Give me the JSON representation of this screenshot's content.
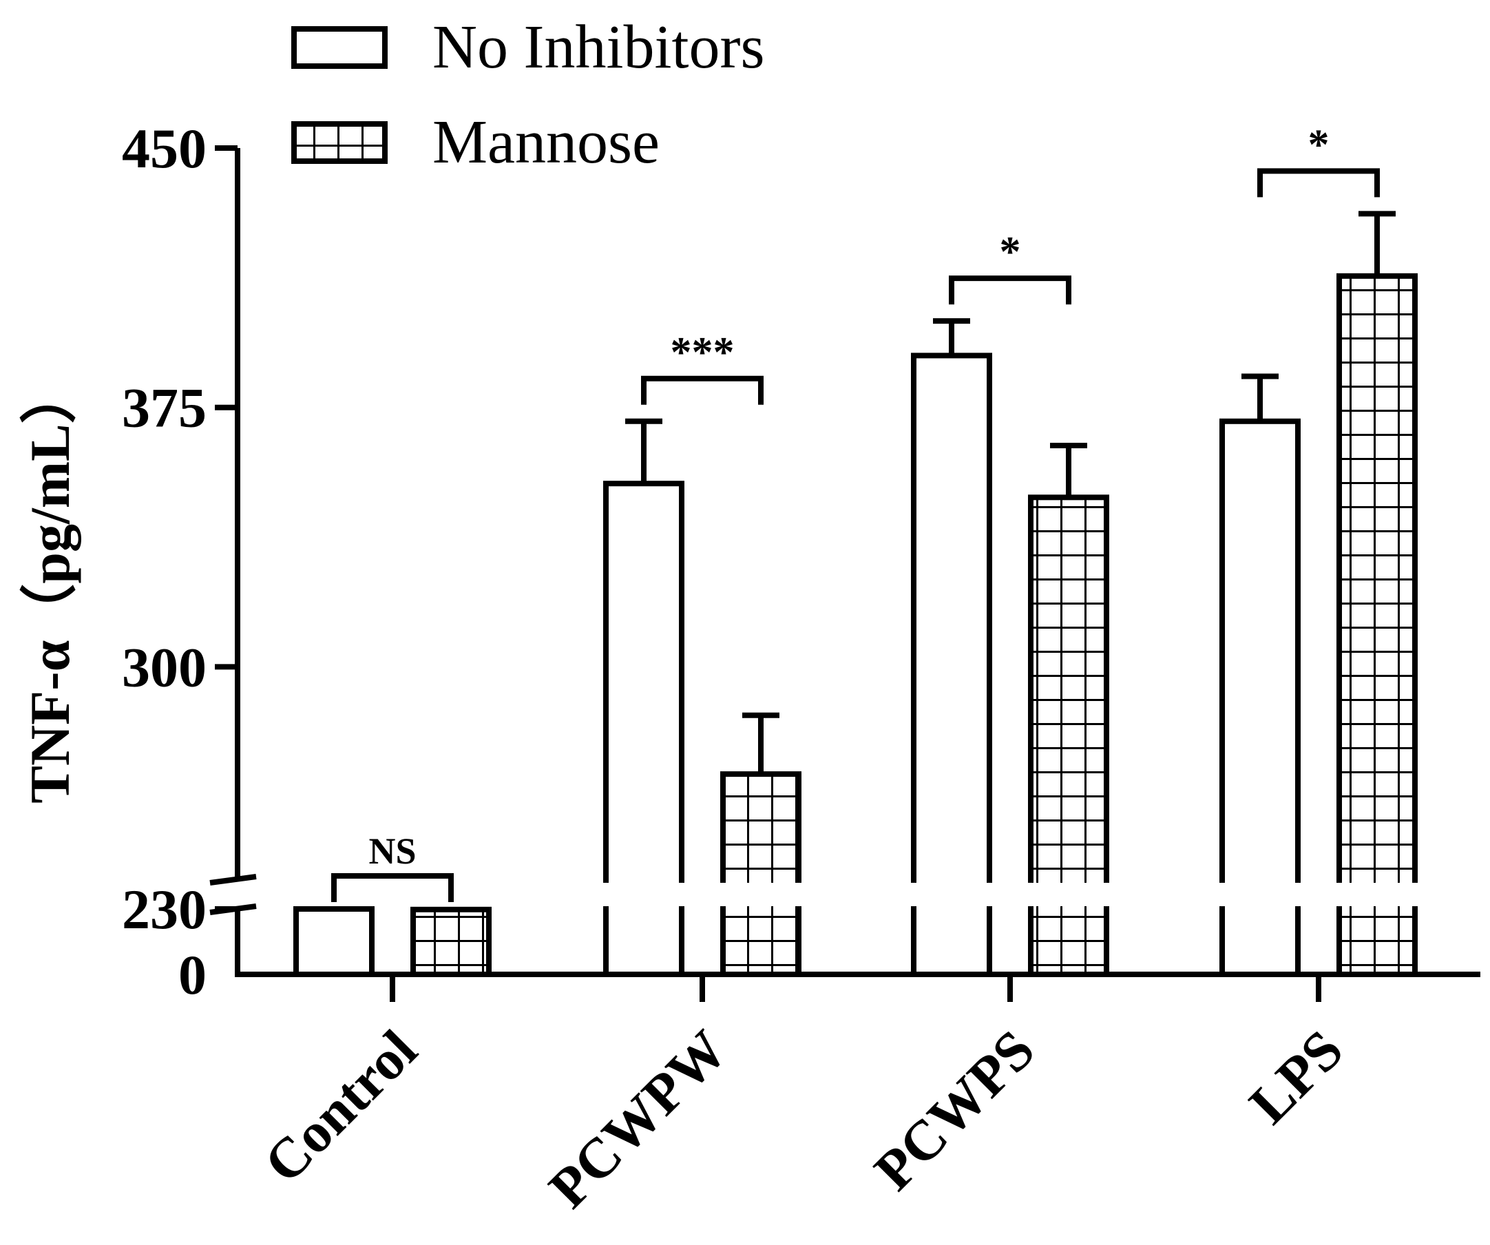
{
  "chart_data": {
    "type": "bar",
    "ylabel": "TNF-α（pg/mL）",
    "categories": [
      "Control",
      "PCWPW",
      "PCWPS",
      "LPS"
    ],
    "series": [
      {
        "name": "No Inhibitors",
        "pattern": "none",
        "values": [
          230,
          353,
          390,
          371
        ],
        "errors": [
          0,
          18,
          10,
          13
        ]
      },
      {
        "name": "Mannose",
        "pattern": "grid",
        "values": [
          228,
          269,
          349,
          413
        ],
        "errors": [
          0,
          17,
          15,
          18
        ]
      }
    ],
    "y_ticks": [
      "0",
      "230",
      "300",
      "375",
      "450"
    ],
    "y_tick_values": [
      0,
      230,
      300,
      375,
      450
    ],
    "y_axis_break": [
      0,
      230
    ],
    "ylim": [
      0,
      450
    ],
    "significance": [
      "NS",
      "***",
      "*",
      "*"
    ],
    "legend_position": "top-left",
    "colors": {
      "ink": "#000000",
      "fill": "#ffffff"
    }
  }
}
